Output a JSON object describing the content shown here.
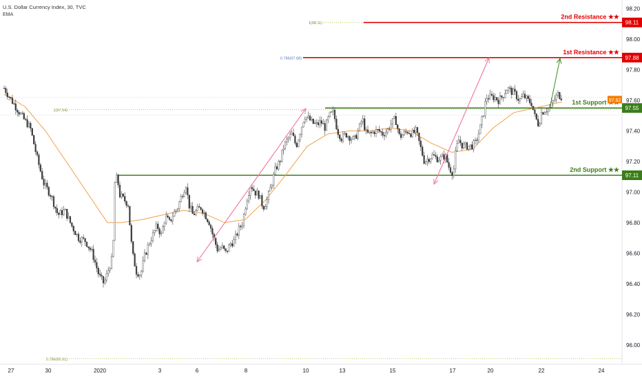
{
  "header": {
    "title": "U.S. Dollar Currency Index, 30, TVC",
    "indicator": "EMA"
  },
  "colors": {
    "up": "#26a69a",
    "down": "#ef5350",
    "candle_body": "#4e4e4e",
    "resistance": "#e10000",
    "support": "#3a7d1a",
    "ema": "#f0a04b",
    "fib": "#9bbf3a",
    "arrow_pink": "#f07a9a",
    "arrow_green": "#3a8a1a",
    "price_tag_orange": "#f57c00"
  },
  "chart_data": {
    "type": "candlestick",
    "y_axis": {
      "min": 95.9,
      "max": 98.23,
      "ticks": [
        "96.00",
        "96.20",
        "96.40",
        "96.60",
        "96.80",
        "97.00",
        "97.20",
        "97.40",
        "97.60",
        "97.80",
        "98.00",
        "98.20"
      ]
    },
    "x_axis": {
      "ticks": [
        "27",
        "30",
        "2020",
        "3",
        "6",
        "8",
        "10",
        "13",
        "15",
        "17",
        "20",
        "22",
        "24"
      ]
    },
    "levels": [
      {
        "name": "2nd Resistance ★★",
        "value": 98.11,
        "tag": "98.11",
        "color": "#e10000"
      },
      {
        "name": "1st Resistance ★★",
        "value": 97.88,
        "tag": "97.88",
        "color": "#e10000"
      },
      {
        "name": "1st Support ★★",
        "value": 97.55,
        "tag": "97.55",
        "color": "#3a7d1a"
      },
      {
        "name": "2nd Support ★★",
        "value": 97.11,
        "tag": "97.11",
        "color": "#3a7d1a"
      }
    ],
    "current_price_tag": "97.62",
    "fib_labels": [
      {
        "text": "1(98.11)",
        "value": 98.11
      },
      {
        "text": "0.786(97.88)",
        "value": 97.88
      },
      {
        "text": "1(97.54)",
        "value": 97.54
      },
      {
        "text": "0.786(95.91)",
        "value": 95.91
      }
    ],
    "price_path": [
      [
        0,
        97.68
      ],
      [
        8,
        97.62
      ],
      [
        18,
        97.55
      ],
      [
        28,
        97.48
      ],
      [
        38,
        97.42
      ],
      [
        48,
        97.22
      ],
      [
        58,
        97.05
      ],
      [
        68,
        96.98
      ],
      [
        78,
        96.85
      ],
      [
        88,
        96.88
      ],
      [
        98,
        96.78
      ],
      [
        108,
        96.7
      ],
      [
        118,
        96.68
      ],
      [
        128,
        96.6
      ],
      [
        138,
        96.45
      ],
      [
        145,
        96.4
      ],
      [
        152,
        96.5
      ],
      [
        158,
        96.58
      ],
      [
        160,
        97.05
      ],
      [
        164,
        97.1
      ],
      [
        168,
        96.98
      ],
      [
        174,
        96.95
      ],
      [
        180,
        96.92
      ],
      [
        186,
        96.6
      ],
      [
        192,
        96.48
      ],
      [
        198,
        96.46
      ],
      [
        204,
        96.58
      ],
      [
        210,
        96.66
      ],
      [
        216,
        96.72
      ],
      [
        222,
        96.78
      ],
      [
        228,
        96.72
      ],
      [
        234,
        96.84
      ],
      [
        240,
        96.8
      ],
      [
        246,
        96.86
      ],
      [
        252,
        96.9
      ],
      [
        258,
        96.98
      ],
      [
        264,
        97.05
      ],
      [
        268,
        96.92
      ],
      [
        274,
        96.85
      ],
      [
        280,
        96.88
      ],
      [
        286,
        96.9
      ],
      [
        292,
        96.85
      ],
      [
        298,
        96.8
      ],
      [
        304,
        96.7
      ],
      [
        310,
        96.62
      ],
      [
        316,
        96.64
      ],
      [
        322,
        96.6
      ],
      [
        328,
        96.66
      ],
      [
        334,
        96.68
      ],
      [
        340,
        96.75
      ],
      [
        346,
        96.8
      ],
      [
        352,
        96.95
      ],
      [
        358,
        97.05
      ],
      [
        364,
        97.0
      ],
      [
        370,
        96.98
      ],
      [
        376,
        96.9
      ],
      [
        382,
        96.95
      ],
      [
        388,
        97.05
      ],
      [
        394,
        97.15
      ],
      [
        400,
        97.2
      ],
      [
        406,
        97.3
      ],
      [
        412,
        97.35
      ],
      [
        418,
        97.38
      ],
      [
        424,
        97.3
      ],
      [
        430,
        97.4
      ],
      [
        436,
        97.5
      ],
      [
        442,
        97.48
      ],
      [
        448,
        97.45
      ],
      [
        454,
        97.44
      ],
      [
        460,
        97.46
      ],
      [
        466,
        97.42
      ],
      [
        472,
        97.5
      ],
      [
        478,
        97.52
      ],
      [
        484,
        97.4
      ],
      [
        490,
        97.35
      ],
      [
        496,
        97.38
      ],
      [
        502,
        97.36
      ],
      [
        508,
        97.34
      ],
      [
        514,
        97.4
      ],
      [
        520,
        97.48
      ],
      [
        526,
        97.38
      ],
      [
        532,
        97.38
      ],
      [
        538,
        97.4
      ],
      [
        544,
        97.4
      ],
      [
        550,
        97.38
      ],
      [
        556,
        97.4
      ],
      [
        562,
        97.45
      ],
      [
        568,
        97.48
      ],
      [
        574,
        97.36
      ],
      [
        580,
        97.38
      ],
      [
        586,
        97.4
      ],
      [
        592,
        97.38
      ],
      [
        598,
        97.4
      ],
      [
        604,
        97.3
      ],
      [
        610,
        97.2
      ],
      [
        616,
        97.22
      ],
      [
        622,
        97.24
      ],
      [
        628,
        97.22
      ],
      [
        634,
        97.22
      ],
      [
        640,
        97.24
      ],
      [
        646,
        97.16
      ],
      [
        652,
        97.12
      ],
      [
        656,
        97.28
      ],
      [
        660,
        97.34
      ],
      [
        666,
        97.3
      ],
      [
        672,
        97.3
      ],
      [
        678,
        97.3
      ],
      [
        684,
        97.32
      ],
      [
        690,
        97.4
      ],
      [
        696,
        97.52
      ],
      [
        700,
        97.62
      ],
      [
        706,
        97.62
      ],
      [
        712,
        97.62
      ],
      [
        718,
        97.6
      ],
      [
        724,
        97.63
      ],
      [
        730,
        97.68
      ],
      [
        736,
        97.66
      ],
      [
        742,
        97.64
      ],
      [
        748,
        97.6
      ],
      [
        754,
        97.63
      ],
      [
        760,
        97.6
      ],
      [
        766,
        97.58
      ],
      [
        770,
        97.5
      ],
      [
        776,
        97.44
      ],
      [
        780,
        97.52
      ],
      [
        786,
        97.54
      ],
      [
        792,
        97.55
      ],
      [
        798,
        97.6
      ],
      [
        804,
        97.64
      ],
      [
        810,
        97.62
      ]
    ],
    "ema_path": [
      [
        0,
        97.64
      ],
      [
        30,
        97.56
      ],
      [
        60,
        97.4
      ],
      [
        90,
        97.2
      ],
      [
        120,
        97.0
      ],
      [
        150,
        96.8
      ],
      [
        170,
        96.8
      ],
      [
        200,
        96.82
      ],
      [
        230,
        96.85
      ],
      [
        260,
        96.88
      ],
      [
        290,
        96.86
      ],
      [
        320,
        96.8
      ],
      [
        350,
        96.82
      ],
      [
        380,
        96.95
      ],
      [
        410,
        97.12
      ],
      [
        440,
        97.3
      ],
      [
        470,
        97.38
      ],
      [
        500,
        97.4
      ],
      [
        530,
        97.4
      ],
      [
        560,
        97.42
      ],
      [
        590,
        97.4
      ],
      [
        620,
        97.32
      ],
      [
        650,
        97.26
      ],
      [
        680,
        97.28
      ],
      [
        710,
        97.42
      ],
      [
        740,
        97.52
      ],
      [
        770,
        97.55
      ],
      [
        800,
        97.58
      ],
      [
        810,
        97.59
      ]
    ]
  }
}
